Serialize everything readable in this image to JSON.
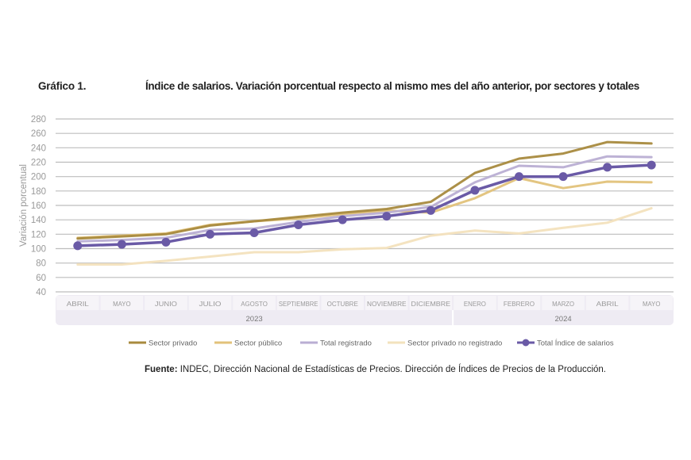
{
  "figure_label": "Gráfico 1.",
  "source": {
    "label": "Fuente:",
    "text": " INDEC, Dirección Nacional de Estadísticas de Precios. Dirección de Índices de Precios de la Producción."
  },
  "chart_data": {
    "type": "line",
    "title": "Índice de salarios. Variación porcentual respecto al mismo mes del año anterior, por sectores y totales",
    "ylabel": "Variación porcentual",
    "xlabel": "",
    "ylim": [
      40,
      280
    ],
    "yticks": [
      40,
      60,
      80,
      100,
      120,
      140,
      160,
      180,
      200,
      220,
      240,
      260,
      280
    ],
    "grid": true,
    "legend_position": "bottom",
    "categories": [
      "ABRIL",
      "MAYO",
      "JUNIO",
      "JULIO",
      "AGOSTO",
      "SEPTIEMBRE",
      "OCTUBRE",
      "NOVIEMBRE",
      "DICIEMBRE",
      "ENERO",
      "FEBRERO",
      "MARZO",
      "ABRIL",
      "MAYO"
    ],
    "year_groups": [
      {
        "label": "2023",
        "span": 9
      },
      {
        "label": "2024",
        "span": 5
      }
    ],
    "series": [
      {
        "name": "Sector privado",
        "color": "#a88a3e",
        "markers": false,
        "values": [
          114,
          117,
          120,
          132,
          138,
          144,
          150,
          155,
          165,
          205,
          225,
          232,
          248,
          246
        ]
      },
      {
        "name": "Sector público",
        "color": "#e2c27a",
        "markers": false,
        "values": [
          115,
          118,
          121,
          133,
          138,
          142,
          148,
          153,
          150,
          170,
          198,
          184,
          193,
          192
        ]
      },
      {
        "name": "Total registrado",
        "color": "#b9aed3",
        "markers": false,
        "values": [
          110,
          112,
          115,
          126,
          128,
          137,
          145,
          150,
          158,
          192,
          215,
          213,
          228,
          227
        ]
      },
      {
        "name": "Sector privado no registrado",
        "color": "#f3e2bd",
        "markers": false,
        "values": [
          78,
          78,
          83,
          89,
          95,
          95,
          99,
          101,
          118,
          125,
          121,
          129,
          136,
          156
        ]
      },
      {
        "name": "Total Índice de salarios",
        "color": "#6a5aa6",
        "markers": true,
        "values": [
          104,
          106,
          109,
          120,
          122,
          133,
          140,
          145,
          153,
          181,
          200,
          200,
          213,
          216
        ]
      }
    ]
  }
}
